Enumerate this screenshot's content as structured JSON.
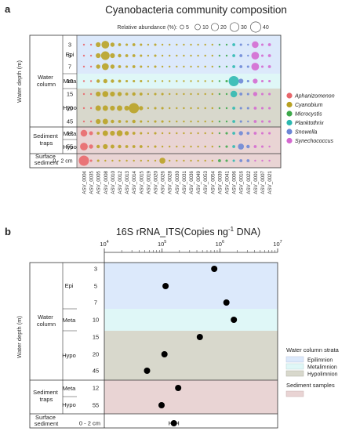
{
  "panel_a": {
    "panel_label": "a",
    "title": "Cyanobacteria community composition",
    "size_legend": {
      "title": "Relative abundance (%):",
      "values": [
        5,
        10,
        20,
        30,
        40
      ],
      "labels": [
        "5",
        "10",
        "20",
        "30",
        "40"
      ]
    },
    "y_axis_title": "Water depth (m)",
    "groups": [
      {
        "label": "Water column",
        "strata": [
          {
            "name": "Epi",
            "depths": [
              "3",
              "5",
              "7"
            ]
          },
          {
            "name": "Meta",
            "depths": [
              "10"
            ]
          },
          {
            "name": "Hypo",
            "depths": [
              "15",
              "20",
              "45"
            ]
          }
        ]
      },
      {
        "label": "Sediment traps",
        "strata": [
          {
            "name": "Meta",
            "depths": [
              "12"
            ]
          },
          {
            "name": "Hypo",
            "depths": [
              "55"
            ]
          }
        ]
      },
      {
        "label": "Surface sediment",
        "strata": [
          {
            "name": "",
            "depths": [
              "0 - 2 cm"
            ]
          }
        ]
      }
    ],
    "genus_legend": [
      {
        "name": "Aphanizomenon",
        "color": "#e8666a"
      },
      {
        "name": "Cyanobium",
        "color": "#b8a020"
      },
      {
        "name": "Microcystis",
        "color": "#3ca84a"
      },
      {
        "name": "Planktothrix",
        "color": "#2bb8b0"
      },
      {
        "name": "Snowella",
        "color": "#6b86d6"
      },
      {
        "name": "Synechococcus",
        "color": "#d468d0"
      }
    ]
  },
  "chart_data": [
    {
      "type": "scatter",
      "title": "Cyanobacteria community composition",
      "xlabel": "",
      "ylabel": "Water depth (m)",
      "categories": [
        "ASV_0004",
        "ASV_0035",
        "ASV_0005",
        "ASV_0008",
        "ASV_0010",
        "ASV_0012",
        "ASV_0013",
        "ASV_0014",
        "ASV_0015",
        "ASV_0019",
        "ASV_0020",
        "ASV_0026",
        "ASV_0028",
        "ASV_0030",
        "ASV_0031",
        "ASV_0036",
        "ASV_0049",
        "ASV_0053",
        "ASV_0054",
        "ASV_0039",
        "ASV_0041",
        "ASV_0006",
        "ASV_0016",
        "ASV_0022",
        "ASV_0001",
        "ASV_0007",
        "ASV_0021"
      ],
      "genus": [
        "Aphanizomenon",
        "Aphanizomenon",
        "Cyanobium",
        "Cyanobium",
        "Cyanobium",
        "Cyanobium",
        "Cyanobium",
        "Cyanobium",
        "Cyanobium",
        "Cyanobium",
        "Cyanobium",
        "Cyanobium",
        "Cyanobium",
        "Cyanobium",
        "Cyanobium",
        "Cyanobium",
        "Cyanobium",
        "Cyanobium",
        "Cyanobium",
        "Microcystis",
        "Microcystis",
        "Planktothrix",
        "Snowella",
        "Snowella",
        "Synechococcus",
        "Synechococcus",
        "Synechococcus"
      ],
      "rows": [
        "3",
        "5",
        "7",
        "10",
        "15",
        "20",
        "45",
        "12",
        "55",
        "0 - 2 cm"
      ],
      "series": [
        {
          "name": "3",
          "values": [
            1,
            1,
            8,
            20,
            6,
            3,
            2,
            3,
            2,
            1,
            2,
            1,
            1,
            1,
            1,
            1,
            1,
            1,
            1,
            0.5,
            1,
            3,
            2,
            1,
            15,
            2,
            3
          ]
        },
        {
          "name": "5",
          "values": [
            1,
            1,
            8,
            25,
            8,
            4,
            3,
            3,
            2,
            1,
            2,
            1,
            1,
            1,
            1,
            1,
            1,
            1,
            1,
            0.5,
            1,
            3,
            3,
            1,
            20,
            2,
            3
          ]
        },
        {
          "name": "7",
          "values": [
            1,
            1,
            6,
            16,
            6,
            3,
            2,
            3,
            2,
            1,
            2,
            1,
            1,
            1,
            1,
            1,
            1,
            1,
            1,
            0.5,
            1,
            3,
            3,
            2,
            20,
            2,
            3
          ]
        },
        {
          "name": "10",
          "values": [
            1,
            1,
            4,
            6,
            4,
            3,
            2,
            2,
            2,
            1,
            1,
            1,
            1,
            1,
            1,
            1,
            1,
            1,
            1,
            1,
            2,
            35,
            8,
            2,
            8,
            2,
            2
          ]
        },
        {
          "name": "15",
          "values": [
            1,
            1,
            8,
            12,
            8,
            6,
            3,
            4,
            3,
            1,
            2,
            2,
            1,
            1,
            1,
            1,
            1,
            1,
            1,
            0.5,
            1,
            15,
            3,
            2,
            6,
            2,
            2
          ]
        },
        {
          "name": "20",
          "values": [
            1,
            1,
            10,
            10,
            8,
            10,
            8,
            35,
            6,
            1,
            2,
            2,
            1,
            1,
            1,
            1,
            1,
            1,
            1,
            0.5,
            1,
            3,
            2,
            2,
            3,
            2,
            2
          ]
        },
        {
          "name": "45",
          "values": [
            1,
            1,
            8,
            10,
            4,
            3,
            2,
            4,
            2,
            1,
            2,
            2,
            1,
            1,
            1,
            1,
            1,
            1,
            1,
            0.5,
            1,
            3,
            2,
            1,
            3,
            2,
            2
          ]
        },
        {
          "name": "12",
          "values": [
            15,
            5,
            3,
            10,
            8,
            12,
            6,
            3,
            2,
            1,
            2,
            1,
            1,
            1,
            1,
            1,
            1,
            1,
            1,
            1,
            2,
            3,
            6,
            3,
            3,
            2,
            2
          ]
        },
        {
          "name": "55",
          "values": [
            20,
            6,
            4,
            8,
            5,
            4,
            3,
            3,
            3,
            1,
            2,
            1,
            1,
            1,
            1,
            1,
            1,
            1,
            1,
            1,
            2,
            3,
            12,
            4,
            3,
            2,
            1
          ]
        },
        {
          "name": "0 - 2 cm",
          "values": [
            35,
            2,
            2,
            1,
            1,
            1,
            1,
            1,
            1,
            1,
            1,
            12,
            1,
            1,
            1,
            1,
            1,
            1,
            1,
            3,
            2,
            2,
            3,
            3,
            1,
            1,
            1
          ]
        }
      ]
    },
    {
      "type": "scatter",
      "title": "16S rRNA_ITS(Copies ng⁻¹ DNA)",
      "xlabel": "16S rRNA_ITS(Copies ng⁻¹ DNA)",
      "ylabel": "Water depth (m)",
      "xscale": "log",
      "xlim": [
        10000,
        10000000
      ],
      "x_ticks": [
        "10^4",
        "10^5",
        "10^6",
        "10^7"
      ],
      "categories": [
        "3",
        "5",
        "7",
        "10",
        "15",
        "20",
        "45",
        "12",
        "55",
        "0 - 2 cm"
      ],
      "values": [
        800000,
        115000,
        1300000,
        1750000,
        450000,
        110000,
        55000,
        190000,
        98000,
        160000
      ]
    }
  ],
  "panel_b": {
    "panel_label": "b",
    "title_main": "16S rRNA_ITS(Copies ng",
    "title_sup": "-1",
    "title_end": " DNA)",
    "x_tick_labels": [
      {
        "base": "10",
        "exp": "4"
      },
      {
        "base": "10",
        "exp": "5"
      },
      {
        "base": "10",
        "exp": "6"
      },
      {
        "base": "10",
        "exp": "7"
      }
    ],
    "y_axis_title": "Water depth (m)",
    "group_labels": {
      "water_column": [
        "Water",
        "column"
      ],
      "sediment_traps": [
        "Sediment",
        "traps"
      ],
      "surface_sediment": [
        "Surface",
        "sediment"
      ]
    },
    "strata_labels": [
      "Epi",
      "Meta",
      "Hypo",
      "Meta",
      "Hypo"
    ],
    "depth_labels": [
      "3",
      "5",
      "7",
      "10",
      "15",
      "20",
      "45",
      "12",
      "55",
      "0 - 2 cm"
    ],
    "legend": {
      "strata_title": "Water column strata",
      "strata": [
        {
          "name": "Epilimnion",
          "color": "#dce9fb"
        },
        {
          "name": "Metalimnion",
          "color": "#dff7f7"
        },
        {
          "name": "Hypolimnion",
          "color": "#d8d8cc"
        }
      ],
      "sediment": {
        "name": "Sediment samples",
        "color": "#e9d4d4"
      }
    }
  }
}
